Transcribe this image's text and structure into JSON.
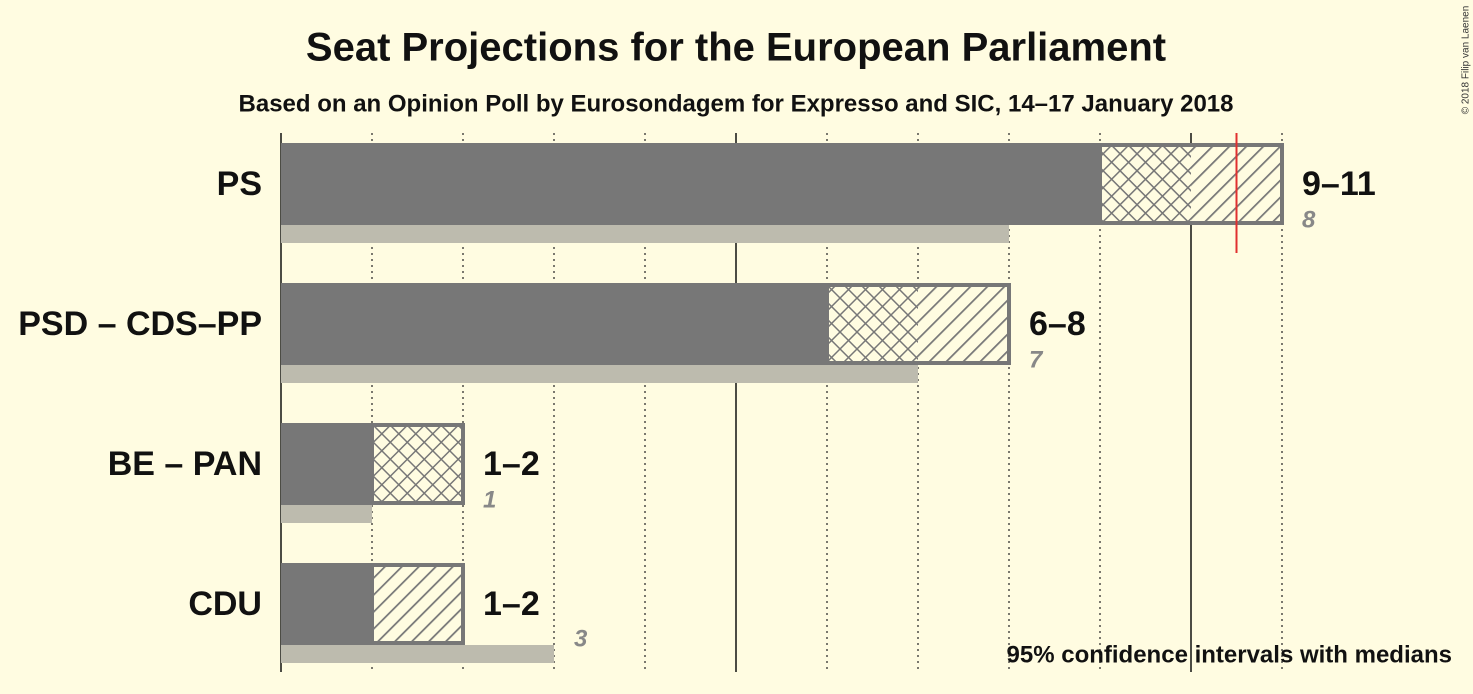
{
  "chart_data": {
    "type": "seat-projection",
    "title": "Seat Projections for the European Parliament",
    "subtitle": "Based on an Opinion Poll by Eurosondagem for Expresso and SIC, 14–17 January 2018",
    "note": "95% confidence intervals with medians",
    "copyright": "© 2018 Filip van Laenen",
    "xlim": [
      0,
      11
    ],
    "xticks": [
      0,
      1,
      2,
      3,
      4,
      5,
      6,
      7,
      8,
      9,
      10,
      11
    ],
    "major_xticks": [
      0,
      5,
      10
    ],
    "threshold": 10.5,
    "threshold_color": "#e03030",
    "bar_color": "#777777",
    "last_result_color": "#bdbbae",
    "categories": [
      "PS",
      "PSD – CDS–PP",
      "BE – PAN",
      "CDU"
    ],
    "low": [
      9,
      6,
      1,
      1
    ],
    "median": [
      10,
      7,
      2,
      1
    ],
    "high": [
      11,
      8,
      2,
      2
    ],
    "range_labels": [
      "9–11",
      "6–8",
      "1–2",
      "1–2"
    ],
    "last_result": [
      8,
      7,
      1,
      3
    ]
  }
}
